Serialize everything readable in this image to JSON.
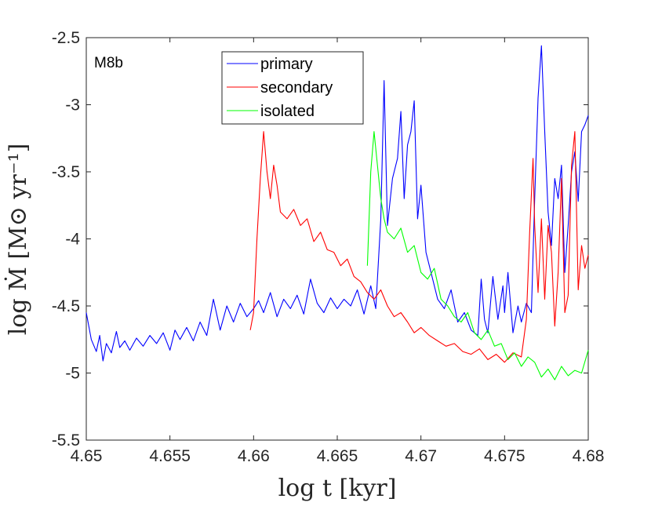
{
  "chart_data": {
    "type": "line",
    "panel_label": "M8b",
    "xlabel": "log t [kyr]",
    "ylabel": "log Ṁ [M⊙ yr⁻¹]",
    "xlim": [
      4.65,
      4.68
    ],
    "ylim": [
      -5.5,
      -2.5
    ],
    "xticks": [
      4.65,
      4.655,
      4.66,
      4.665,
      4.67,
      4.675,
      4.68
    ],
    "xtick_labels": [
      "4.65",
      "4.655",
      "4.66",
      "4.665",
      "4.67",
      "4.675",
      "4.68"
    ],
    "yticks": [
      -2.5,
      -3,
      -3.5,
      -4,
      -4.5,
      -5,
      -5.5
    ],
    "ytick_labels": [
      "-2.5",
      "-3",
      "-3.5",
      "-4",
      "-4.5",
      "-5",
      "-5.5"
    ],
    "legend_position": "top-center",
    "series": [
      {
        "name": "primary",
        "color": "#0000ff",
        "x": [
          4.65,
          4.6503,
          4.6506,
          4.6508,
          4.651,
          4.6512,
          4.6515,
          4.6518,
          4.652,
          4.6523,
          4.6526,
          4.653,
          4.6534,
          4.6538,
          4.6542,
          4.6546,
          4.655,
          4.6553,
          4.6556,
          4.656,
          4.6564,
          4.6568,
          4.6572,
          4.6576,
          4.658,
          4.6584,
          4.6588,
          4.6592,
          4.6596,
          4.66,
          4.6603,
          4.6606,
          4.661,
          4.6614,
          4.6618,
          4.6622,
          4.6626,
          4.663,
          4.6634,
          4.6638,
          4.6642,
          4.6646,
          4.665,
          4.6654,
          4.6658,
          4.6662,
          4.6666,
          4.667,
          4.6673,
          4.6676,
          4.6678,
          4.668,
          4.6683,
          4.6686,
          4.6688,
          4.669,
          4.6692,
          4.6694,
          4.6696,
          4.6698,
          4.67,
          4.6703,
          4.6706,
          4.671,
          4.6714,
          4.6718,
          4.6722,
          4.6726,
          4.673,
          4.6734,
          4.6736,
          4.6738,
          4.674,
          4.6743,
          4.6746,
          4.6749,
          4.675,
          4.6752,
          4.6755,
          4.6758,
          4.676,
          4.6763,
          4.6766,
          4.6768,
          4.677,
          4.6772,
          4.6774,
          4.6776,
          4.6778,
          4.678,
          4.6782,
          4.6784,
          4.6786,
          4.6788,
          4.679,
          4.6792,
          4.6794,
          4.6796,
          4.6798,
          4.68
        ],
        "y": [
          -4.55,
          -4.75,
          -4.84,
          -4.72,
          -4.91,
          -4.78,
          -4.85,
          -4.69,
          -4.81,
          -4.76,
          -4.83,
          -4.74,
          -4.8,
          -4.72,
          -4.78,
          -4.7,
          -4.83,
          -4.68,
          -4.75,
          -4.66,
          -4.76,
          -4.62,
          -4.72,
          -4.45,
          -4.68,
          -4.5,
          -4.62,
          -4.48,
          -4.58,
          -4.52,
          -4.46,
          -4.55,
          -4.4,
          -4.58,
          -4.45,
          -4.52,
          -4.42,
          -4.56,
          -4.3,
          -4.48,
          -4.55,
          -4.44,
          -4.52,
          -4.45,
          -4.5,
          -4.38,
          -4.56,
          -4.35,
          -4.52,
          -3.85,
          -2.82,
          -3.9,
          -3.55,
          -3.4,
          -3.05,
          -3.7,
          -3.3,
          -3.2,
          -2.97,
          -3.85,
          -3.6,
          -4.1,
          -4.25,
          -4.45,
          -4.52,
          -4.38,
          -4.62,
          -4.55,
          -4.68,
          -4.72,
          -4.3,
          -4.6,
          -4.7,
          -4.28,
          -4.6,
          -4.35,
          -4.55,
          -4.25,
          -4.7,
          -4.5,
          -4.62,
          -4.48,
          -4.55,
          -3.7,
          -2.95,
          -2.56,
          -3.2,
          -3.8,
          -4.05,
          -3.55,
          -3.7,
          -3.45,
          -4.25,
          -3.9,
          -3.5,
          -3.35,
          -3.72,
          -3.2,
          -3.15,
          -3.08
        ]
      },
      {
        "name": "secondary",
        "color": "#ff0000",
        "x": [
          4.6598,
          4.66,
          4.6602,
          4.6604,
          4.6606,
          4.6608,
          4.661,
          4.6612,
          4.6614,
          4.6616,
          4.662,
          4.6624,
          4.6628,
          4.6632,
          4.6636,
          4.664,
          4.6644,
          4.6648,
          4.6652,
          4.6656,
          4.666,
          4.6664,
          4.6668,
          4.6672,
          4.6676,
          4.668,
          4.6684,
          4.6688,
          4.6692,
          4.6696,
          4.67,
          4.6705,
          4.671,
          4.6715,
          4.672,
          4.6725,
          4.673,
          4.6735,
          4.674,
          4.6745,
          4.675,
          4.6755,
          4.676,
          4.6763,
          4.6765,
          4.6767,
          4.6768,
          4.677,
          4.6772,
          4.6774,
          4.6776,
          4.6778,
          4.678,
          4.6782,
          4.6784,
          4.6786,
          4.6788,
          4.679,
          4.6792,
          4.6794,
          4.6796,
          4.6798,
          4.68
        ],
        "y": [
          -4.68,
          -4.55,
          -4.0,
          -3.55,
          -3.2,
          -3.5,
          -3.7,
          -3.45,
          -3.6,
          -3.8,
          -3.85,
          -3.78,
          -3.9,
          -3.85,
          -4.02,
          -3.95,
          -4.08,
          -4.1,
          -4.2,
          -4.15,
          -4.28,
          -4.32,
          -4.4,
          -4.45,
          -4.38,
          -4.5,
          -4.58,
          -4.55,
          -4.62,
          -4.7,
          -4.66,
          -4.72,
          -4.76,
          -4.8,
          -4.78,
          -4.84,
          -4.86,
          -4.82,
          -4.9,
          -4.86,
          -4.92,
          -4.85,
          -4.88,
          -4.6,
          -3.95,
          -3.4,
          -3.9,
          -4.4,
          -3.85,
          -4.45,
          -3.9,
          -4.1,
          -4.65,
          -4.25,
          -3.55,
          -4.55,
          -4.42,
          -3.45,
          -3.2,
          -4.38,
          -4.05,
          -4.22,
          -4.12
        ]
      },
      {
        "name": "isolated",
        "color": "#00ff00",
        "x": [
          4.6668,
          4.667,
          4.6672,
          4.6674,
          4.6676,
          4.6678,
          4.668,
          4.6684,
          4.6688,
          4.6692,
          4.6696,
          4.67,
          4.6704,
          4.6708,
          4.6712,
          4.6716,
          4.672,
          4.6724,
          4.6728,
          4.6732,
          4.6736,
          4.674,
          4.6744,
          4.6748,
          4.6752,
          4.6756,
          4.676,
          4.6764,
          4.6768,
          4.6772,
          4.6776,
          4.678,
          4.6784,
          4.6788,
          4.6792,
          4.6796,
          4.68
        ],
        "y": [
          -4.2,
          -3.5,
          -3.2,
          -3.45,
          -3.7,
          -3.85,
          -3.95,
          -4.0,
          -3.92,
          -4.1,
          -4.05,
          -4.25,
          -4.3,
          -4.22,
          -4.45,
          -4.5,
          -4.58,
          -4.62,
          -4.55,
          -4.7,
          -4.75,
          -4.68,
          -4.8,
          -4.78,
          -4.9,
          -4.85,
          -4.95,
          -4.88,
          -4.92,
          -5.03,
          -4.97,
          -5.05,
          -4.95,
          -5.02,
          -4.98,
          -5.0,
          -4.83
        ]
      }
    ]
  }
}
